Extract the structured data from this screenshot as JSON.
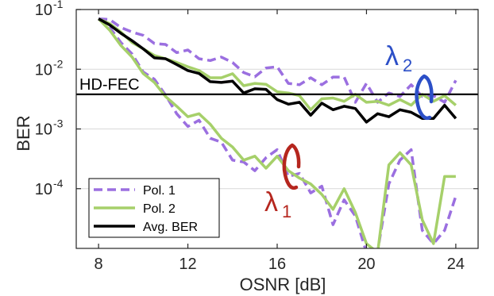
{
  "chart_data": {
    "type": "line",
    "title": "",
    "xlabel": "OSNR [dB]",
    "ylabel": "BER",
    "xlim": [
      7,
      25
    ],
    "ylim": [
      1e-05,
      0.1
    ],
    "yscale": "log",
    "grid": "horizontal",
    "legend_position": "bottom-left",
    "x_ticks": [
      8,
      12,
      16,
      20,
      24
    ],
    "x_tick_labels": [
      "8",
      "12",
      "16",
      "20",
      "24"
    ],
    "y_ticks": [
      0.0001,
      0.001,
      0.01,
      0.1
    ],
    "y_tick_labels": [
      {
        "base": "10",
        "exp": "-4"
      },
      {
        "base": "10",
        "exp": "-3"
      },
      {
        "base": "10",
        "exp": "-2"
      },
      {
        "base": "10",
        "exp": "-1"
      }
    ],
    "series": [
      {
        "name": "Pol. 1",
        "color": "#9b6fe0",
        "style": "dashed",
        "groups": [
          {
            "x": [
              8,
              8.5,
              9,
              9.5,
              10,
              10.5,
              11,
              11.5,
              12,
              12.5,
              13,
              13.5,
              14,
              14.5,
              15,
              15.5,
              16,
              16.5,
              17,
              17.5,
              18,
              18.5,
              19,
              19.5,
              20,
              20.5,
              21,
              21.5,
              22,
              22.5,
              23,
              23.5,
              24
            ],
            "y": [
              0.07,
              0.068,
              0.05,
              0.042,
              0.037,
              0.027,
              0.026,
              0.019,
              0.021,
              0.015,
              0.014,
              0.016,
              0.013,
              0.0088,
              0.0075,
              0.0105,
              0.011,
              0.0058,
              0.0055,
              0.0072,
              0.0055,
              0.0074,
              0.0074,
              0.0028,
              0.0058,
              0.0028,
              0.004,
              0.0035,
              0.0055,
              0.0035,
              0.0036,
              0.0028,
              0.0065
            ]
          },
          {
            "x": [
              8,
              8.5,
              9,
              9.5,
              10,
              10.5,
              11,
              11.5,
              12,
              12.5,
              13,
              13.5,
              14,
              14.5,
              15,
              15.5,
              16,
              16.5,
              17,
              17.5,
              18,
              18.5,
              19,
              19.5,
              20,
              20.5,
              21,
              21.5,
              22,
              22.5,
              23,
              23.5,
              24
            ],
            "y": [
              0.07,
              0.05,
              0.028,
              0.018,
              0.009,
              0.0068,
              0.0037,
              0.0018,
              0.0011,
              0.0014,
              0.0007,
              0.0006,
              0.0003,
              0.00028,
              0.0002,
              0.00033,
              0.00045,
              0.00016,
              0.00018,
              8.5e-05,
              0.00011,
              2.5e-05,
              6.5e-05,
              3.5e-05,
              8.5e-06,
              9e-06,
              0.00012,
              0.0003,
              0.00045,
              2e-05,
              1.2e-05,
              2e-05,
              7.5e-05
            ]
          }
        ]
      },
      {
        "name": "Pol. 2",
        "color": "#a6d06a",
        "style": "solid",
        "groups": [
          {
            "x": [
              8,
              8.5,
              9,
              9.5,
              10,
              10.5,
              11,
              11.5,
              12,
              12.5,
              13,
              13.5,
              14,
              14.5,
              15,
              15.5,
              16,
              16.5,
              17,
              17.5,
              18,
              18.5,
              19,
              19.5,
              20,
              20.5,
              21,
              21.5,
              22,
              22.5,
              23,
              23.5,
              24
            ],
            "y": [
              0.07,
              0.058,
              0.042,
              0.028,
              0.022,
              0.017,
              0.015,
              0.013,
              0.011,
              0.0095,
              0.0072,
              0.0072,
              0.0084,
              0.0053,
              0.0058,
              0.0056,
              0.0042,
              0.004,
              0.0036,
              0.0021,
              0.0032,
              0.0033,
              0.0029,
              0.0038,
              0.0028,
              0.0029,
              0.0025,
              0.0031,
              0.0025,
              0.0038,
              0.0029,
              0.0036,
              0.0025
            ]
          },
          {
            "x": [
              8,
              8.5,
              9,
              9.5,
              10,
              10.5,
              11,
              11.5,
              12,
              12.5,
              13,
              13.5,
              14,
              14.5,
              15,
              15.5,
              16,
              16.5,
              17,
              17.5,
              18,
              18.5,
              19,
              19.5,
              20,
              20.5,
              21,
              21.5,
              22,
              22.5,
              23,
              23.5,
              24
            ],
            "y": [
              0.07,
              0.045,
              0.025,
              0.016,
              0.0085,
              0.006,
              0.0035,
              0.0024,
              0.0016,
              0.0018,
              0.0012,
              0.0007,
              0.0005,
              0.0003,
              0.00035,
              0.00022,
              0.00035,
              0.0002,
              0.00015,
              0.00012,
              8e-05,
              4.5e-05,
              0.0001,
              4e-05,
              1.2e-05,
              8.5e-06,
              0.00025,
              0.0004,
              0.00025,
              3e-05,
              1.2e-05,
              0.00016,
              0.00016
            ]
          }
        ]
      },
      {
        "name": "Avg. BER",
        "color": "#000000",
        "style": "solid",
        "groups": [
          {
            "x": [
              8,
              8.5,
              9,
              9.5,
              10,
              10.5,
              11,
              11.5,
              12,
              12.5,
              13,
              13.5,
              14,
              14.5,
              15,
              15.5,
              16,
              16.5,
              17,
              17.5,
              18,
              18.5,
              19,
              19.5,
              20,
              20.5,
              21,
              21.5,
              22,
              22.5,
              23,
              23.5,
              24
            ],
            "y": [
              0.07,
              0.055,
              0.04,
              0.03,
              0.022,
              0.0155,
              0.015,
              0.012,
              0.0095,
              0.0085,
              0.0062,
              0.006,
              0.0063,
              0.004,
              0.0047,
              0.0046,
              0.0031,
              0.0026,
              0.0028,
              0.0017,
              0.0027,
              0.0021,
              0.0024,
              0.0022,
              0.0013,
              0.0018,
              0.0016,
              0.0021,
              0.0019,
              0.0015,
              0.0015,
              0.0025,
              0.0015
            ]
          }
        ]
      }
    ],
    "threshold": {
      "label": "HD-FEC",
      "y": 0.0038,
      "color": "#000000"
    },
    "annotations": [
      {
        "base": "λ",
        "sub": "2",
        "color": "#2c4fc7"
      },
      {
        "base": "λ",
        "sub": "1",
        "color": "#b5261e"
      }
    ]
  }
}
